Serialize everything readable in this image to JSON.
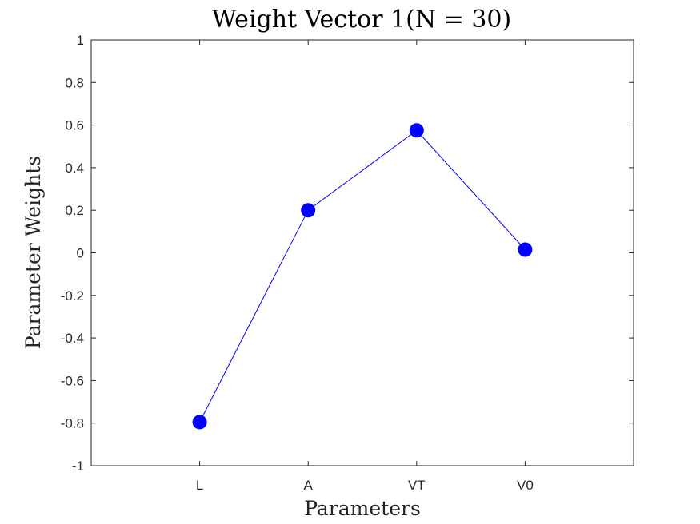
{
  "chart_data": {
    "type": "line",
    "title": "Weight Vector 1(N = 30)",
    "xlabel": "Parameters",
    "ylabel": "Parameter Weights",
    "categories": [
      "L",
      "A",
      "VT",
      "V0"
    ],
    "series": [
      {
        "values": [
          -0.795,
          0.2,
          0.575,
          0.015
        ]
      }
    ],
    "xlim": [
      0,
      5
    ],
    "ylim": [
      -1,
      1
    ],
    "yticks": [
      "-1",
      "-0.8",
      "-0.6",
      "-0.4",
      "-0.2",
      "0",
      "0.2",
      "0.4",
      "0.6",
      "0.8",
      "1"
    ],
    "grid": false,
    "legend": "none",
    "colors": {
      "series": "#0000ff",
      "axis": "#262626"
    }
  }
}
